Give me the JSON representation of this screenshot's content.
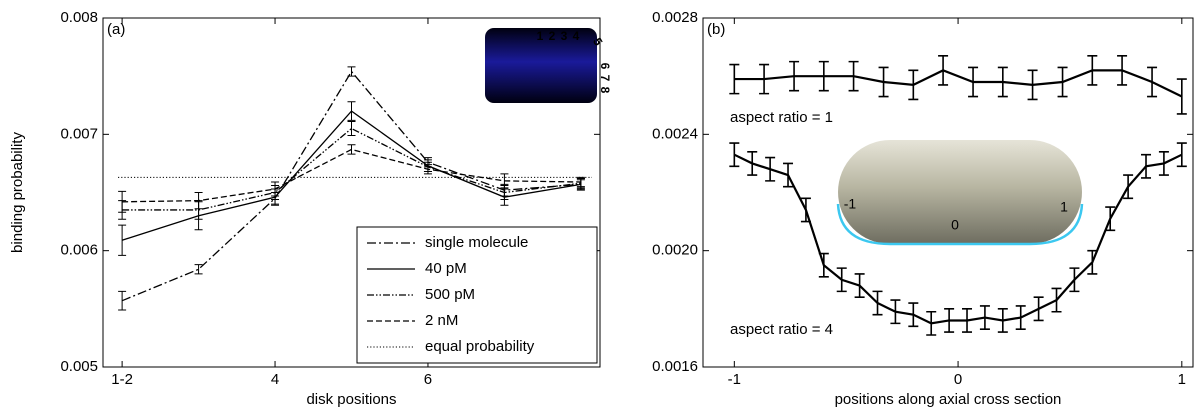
{
  "chart_data": [
    {
      "type": "line",
      "panel_label": "(a)",
      "xlabel": "disk positions",
      "ylabel": "binding probability",
      "xlim": [
        1.75,
        8.25
      ],
      "xticks": [
        {
          "value": 2,
          "label": "1-2"
        },
        4,
        6
      ],
      "ylim": [
        0.005,
        0.008
      ],
      "yticks": [
        0.005,
        0.006,
        0.007,
        0.008
      ],
      "grid": false,
      "legend": "lower right",
      "x": [
        2,
        3,
        4,
        5,
        6,
        7,
        8
      ],
      "series": [
        {
          "name": "single molecule",
          "color": "#000000",
          "dash": "dashdot",
          "values": [
            0.00557,
            0.00584,
            0.00645,
            0.00754,
            0.00676,
            0.00652,
            0.00657
          ],
          "errors": [
            8e-05,
            4e-05,
            5e-05,
            4e-05,
            4e-05,
            5e-05,
            4e-05
          ]
        },
        {
          "name": "40 pM",
          "color": "#000000",
          "dash": "solid",
          "values": [
            0.00609,
            0.0063,
            0.00646,
            0.0072,
            0.00673,
            0.00646,
            0.00657
          ],
          "errors": [
            0.00013,
            0.00012,
            7e-05,
            8e-05,
            5e-05,
            7e-05,
            5e-05
          ]
        },
        {
          "name": "500 pM",
          "color": "#000000",
          "dash": "dashdotdot",
          "values": [
            0.00635,
            0.00635,
            0.0065,
            0.00705,
            0.00672,
            0.0065,
            0.00658
          ],
          "errors": [
            8e-05,
            8e-05,
            6e-05,
            6e-05,
            4e-05,
            6e-05,
            4e-05
          ]
        },
        {
          "name": "2 nM",
          "color": "#000000",
          "dash": "dashed",
          "values": [
            0.00642,
            0.00643,
            0.00653,
            0.00687,
            0.0067,
            0.0066,
            0.00659
          ],
          "errors": [
            9e-05,
            7e-05,
            6e-05,
            4e-05,
            4e-05,
            6e-05,
            4e-05
          ]
        }
      ],
      "reference": {
        "name": "equal probability",
        "value": 0.00663,
        "dash": "dotted"
      },
      "inset_labels": [
        "1",
        "2",
        "3",
        "4",
        "5",
        "6",
        "7",
        "8"
      ]
    },
    {
      "type": "line",
      "panel_label": "(b)",
      "xlabel": "positions along axial cross section",
      "xlim": [
        -1.14,
        1.05
      ],
      "xticks": [
        -1,
        0,
        1
      ],
      "ylim": [
        0.0016,
        0.0028
      ],
      "yticks": [
        0.0016,
        {
          "value": 0.002,
          "label": "0.0020"
        },
        0.0024,
        0.0028
      ],
      "grid": false,
      "series": [
        {
          "name": "aspect ratio = 1",
          "color": "#000000",
          "dash": "solid",
          "x": [
            -1,
            -0.867,
            -0.733,
            -0.6,
            -0.467,
            -0.333,
            -0.2,
            -0.067,
            0.067,
            0.2,
            0.333,
            0.467,
            0.6,
            0.733,
            0.867,
            1
          ],
          "values": [
            0.00259,
            0.00259,
            0.0026,
            0.0026,
            0.0026,
            0.00258,
            0.00257,
            0.00262,
            0.00258,
            0.00258,
            0.00257,
            0.00258,
            0.00262,
            0.00262,
            0.00258,
            0.00253
          ],
          "errors": [
            5e-05,
            5e-05,
            5e-05,
            5e-05,
            5e-05,
            5e-05,
            5e-05,
            5e-05,
            5e-05,
            5e-05,
            5e-05,
            5e-05,
            5e-05,
            5e-05,
            5e-05,
            6e-05
          ]
        },
        {
          "name": "aspect ratio = 4",
          "color": "#000000",
          "dash": "solid",
          "x": [
            -1,
            -0.92,
            -0.84,
            -0.76,
            -0.68,
            -0.6,
            -0.52,
            -0.44,
            -0.36,
            -0.28,
            -0.2,
            -0.12,
            -0.04,
            0.04,
            0.12,
            0.2,
            0.28,
            0.36,
            0.44,
            0.52,
            0.6,
            0.68,
            0.76,
            0.84,
            0.92,
            1
          ],
          "values": [
            0.00233,
            0.0023,
            0.00228,
            0.00226,
            0.00214,
            0.00195,
            0.0019,
            0.00188,
            0.00182,
            0.00179,
            0.00178,
            0.00175,
            0.00176,
            0.00176,
            0.00177,
            0.00176,
            0.00177,
            0.0018,
            0.00183,
            0.0019,
            0.00196,
            0.00211,
            0.00222,
            0.00229,
            0.0023,
            0.00233
          ],
          "errors": [
            4e-05,
            4e-05,
            4e-05,
            4e-05,
            4e-05,
            4e-05,
            4e-05,
            4e-05,
            4e-05,
            4e-05,
            4e-05,
            4e-05,
            4e-05,
            4e-05,
            4e-05,
            4e-05,
            4e-05,
            4e-05,
            4e-05,
            4e-05,
            4e-05,
            4e-05,
            4e-05,
            4e-05,
            4e-05,
            4e-05
          ]
        }
      ],
      "inset_labels": [
        "-1",
        "0",
        "1"
      ]
    }
  ]
}
